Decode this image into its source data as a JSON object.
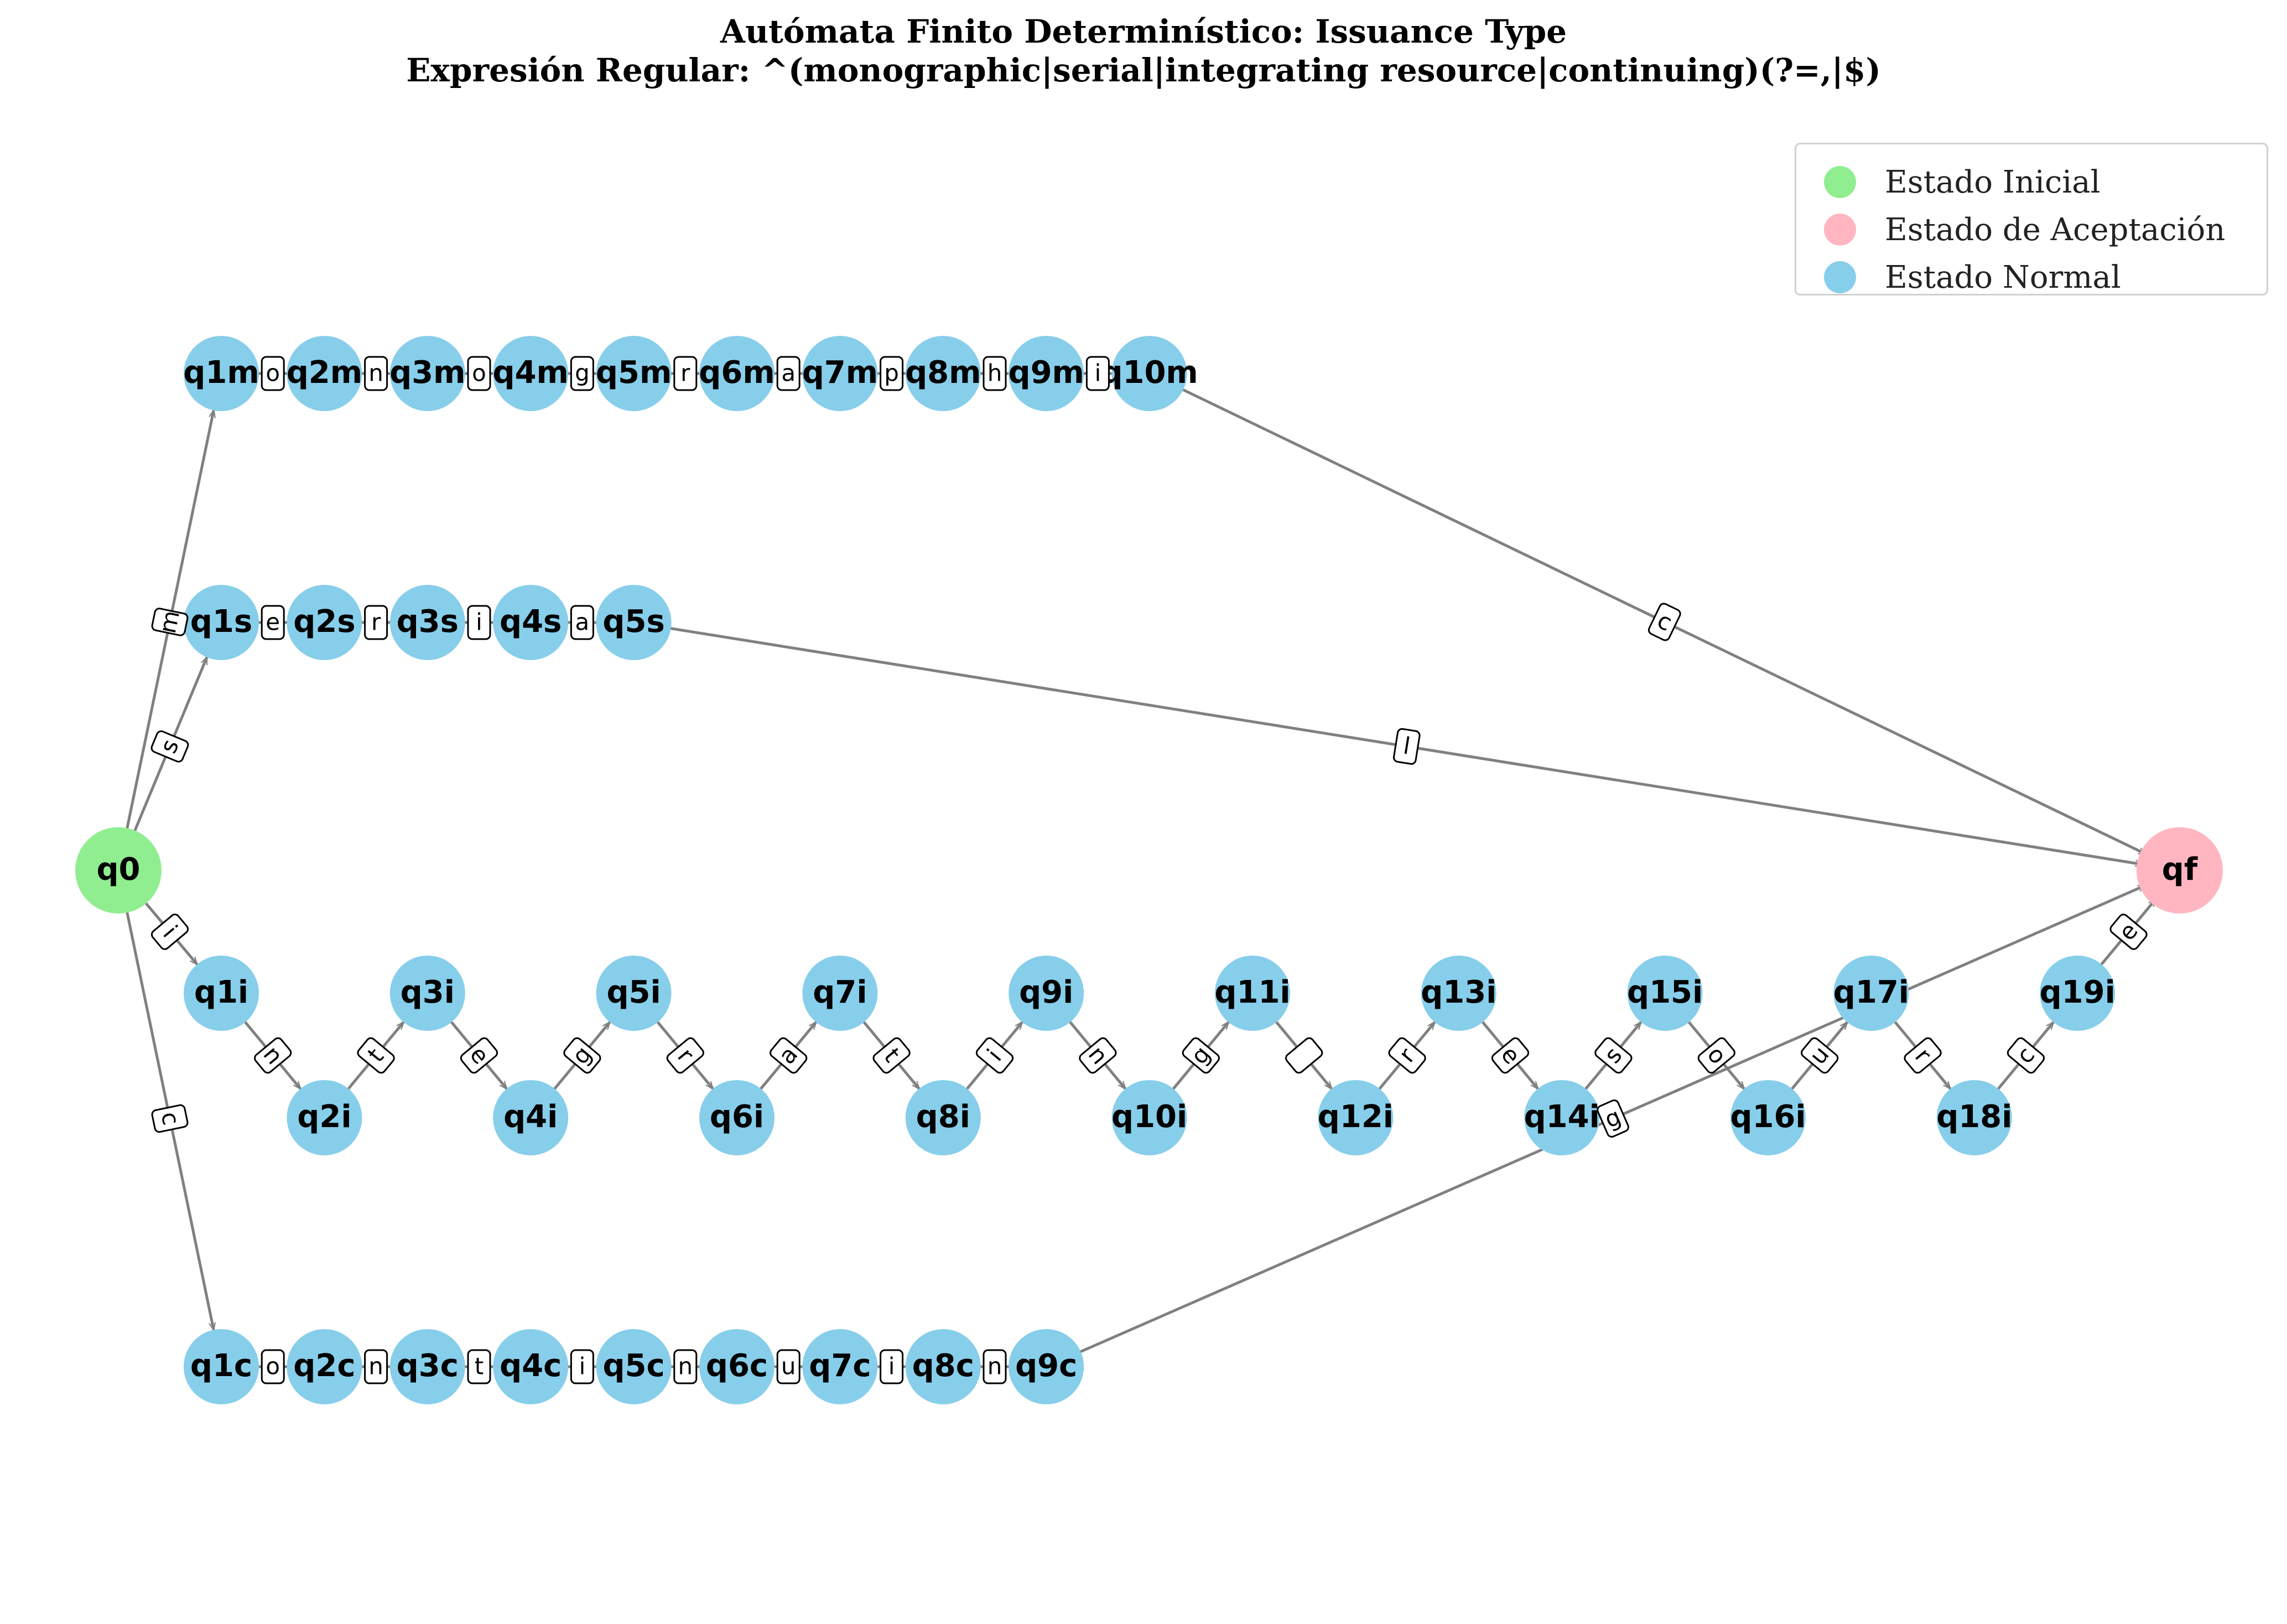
{
  "title": {
    "line1": "Autómata Finito Determinístico: Issuance Type",
    "line2": "Expresión Regular: ^(monographic|serial|integrating resource|continuing)(?=,|$)"
  },
  "legend": [
    {
      "label": "Estado Inicial",
      "color": "#90EE90"
    },
    {
      "label": "Estado de Aceptación",
      "color": "#FFB6C1"
    },
    {
      "label": "Estado Normal",
      "color": "#87CEEB"
    }
  ],
  "colors": {
    "initial": "#90EE90",
    "accept": "#FFB6C1",
    "normal": "#87CEEB",
    "edge": "#808080"
  },
  "nodes": [
    {
      "id": "q0",
      "type": "initial"
    },
    {
      "id": "qf",
      "type": "accept"
    },
    {
      "id": "q1m",
      "type": "normal"
    },
    {
      "id": "q2m",
      "type": "normal"
    },
    {
      "id": "q3m",
      "type": "normal"
    },
    {
      "id": "q4m",
      "type": "normal"
    },
    {
      "id": "q5m",
      "type": "normal"
    },
    {
      "id": "q6m",
      "type": "normal"
    },
    {
      "id": "q7m",
      "type": "normal"
    },
    {
      "id": "q8m",
      "type": "normal"
    },
    {
      "id": "q9m",
      "type": "normal"
    },
    {
      "id": "q10m",
      "type": "normal"
    },
    {
      "id": "q1s",
      "type": "normal"
    },
    {
      "id": "q2s",
      "type": "normal"
    },
    {
      "id": "q3s",
      "type": "normal"
    },
    {
      "id": "q4s",
      "type": "normal"
    },
    {
      "id": "q5s",
      "type": "normal"
    },
    {
      "id": "q1i",
      "type": "normal"
    },
    {
      "id": "q2i",
      "type": "normal"
    },
    {
      "id": "q3i",
      "type": "normal"
    },
    {
      "id": "q4i",
      "type": "normal"
    },
    {
      "id": "q5i",
      "type": "normal"
    },
    {
      "id": "q6i",
      "type": "normal"
    },
    {
      "id": "q7i",
      "type": "normal"
    },
    {
      "id": "q8i",
      "type": "normal"
    },
    {
      "id": "q9i",
      "type": "normal"
    },
    {
      "id": "q10i",
      "type": "normal"
    },
    {
      "id": "q11i",
      "type": "normal"
    },
    {
      "id": "q12i",
      "type": "normal"
    },
    {
      "id": "q13i",
      "type": "normal"
    },
    {
      "id": "q14i",
      "type": "normal"
    },
    {
      "id": "q15i",
      "type": "normal"
    },
    {
      "id": "q16i",
      "type": "normal"
    },
    {
      "id": "q17i",
      "type": "normal"
    },
    {
      "id": "q18i",
      "type": "normal"
    },
    {
      "id": "q19i",
      "type": "normal"
    },
    {
      "id": "q1c",
      "type": "normal"
    },
    {
      "id": "q2c",
      "type": "normal"
    },
    {
      "id": "q3c",
      "type": "normal"
    },
    {
      "id": "q4c",
      "type": "normal"
    },
    {
      "id": "q5c",
      "type": "normal"
    },
    {
      "id": "q6c",
      "type": "normal"
    },
    {
      "id": "q7c",
      "type": "normal"
    },
    {
      "id": "q8c",
      "type": "normal"
    },
    {
      "id": "q9c",
      "type": "normal"
    }
  ],
  "edges": [
    {
      "from": "q0",
      "to": "q1m",
      "label": "m"
    },
    {
      "from": "q1m",
      "to": "q2m",
      "label": "o"
    },
    {
      "from": "q2m",
      "to": "q3m",
      "label": "n"
    },
    {
      "from": "q3m",
      "to": "q4m",
      "label": "o"
    },
    {
      "from": "q4m",
      "to": "q5m",
      "label": "g"
    },
    {
      "from": "q5m",
      "to": "q6m",
      "label": "r"
    },
    {
      "from": "q6m",
      "to": "q7m",
      "label": "a"
    },
    {
      "from": "q7m",
      "to": "q8m",
      "label": "p"
    },
    {
      "from": "q8m",
      "to": "q9m",
      "label": "h"
    },
    {
      "from": "q9m",
      "to": "q10m",
      "label": "i"
    },
    {
      "from": "q10m",
      "to": "qf",
      "label": "c"
    },
    {
      "from": "q0",
      "to": "q1s",
      "label": "s"
    },
    {
      "from": "q1s",
      "to": "q2s",
      "label": "e"
    },
    {
      "from": "q2s",
      "to": "q3s",
      "label": "r"
    },
    {
      "from": "q3s",
      "to": "q4s",
      "label": "i"
    },
    {
      "from": "q4s",
      "to": "q5s",
      "label": "a"
    },
    {
      "from": "q5s",
      "to": "qf",
      "label": "l"
    },
    {
      "from": "q0",
      "to": "q1i",
      "label": "i"
    },
    {
      "from": "q1i",
      "to": "q2i",
      "label": "n"
    },
    {
      "from": "q2i",
      "to": "q3i",
      "label": "t"
    },
    {
      "from": "q3i",
      "to": "q4i",
      "label": "e"
    },
    {
      "from": "q4i",
      "to": "q5i",
      "label": "g"
    },
    {
      "from": "q5i",
      "to": "q6i",
      "label": "r"
    },
    {
      "from": "q6i",
      "to": "q7i",
      "label": "a"
    },
    {
      "from": "q7i",
      "to": "q8i",
      "label": "t"
    },
    {
      "from": "q8i",
      "to": "q9i",
      "label": "i"
    },
    {
      "from": "q9i",
      "to": "q10i",
      "label": "n"
    },
    {
      "from": "q10i",
      "to": "q11i",
      "label": "g"
    },
    {
      "from": "q11i",
      "to": "q12i",
      "label": " "
    },
    {
      "from": "q12i",
      "to": "q13i",
      "label": "r"
    },
    {
      "from": "q13i",
      "to": "q14i",
      "label": "e"
    },
    {
      "from": "q14i",
      "to": "q15i",
      "label": "s"
    },
    {
      "from": "q15i",
      "to": "q16i",
      "label": "o"
    },
    {
      "from": "q16i",
      "to": "q17i",
      "label": "u"
    },
    {
      "from": "q17i",
      "to": "q18i",
      "label": "r"
    },
    {
      "from": "q18i",
      "to": "q19i",
      "label": "c"
    },
    {
      "from": "q19i",
      "to": "qf",
      "label": "e"
    },
    {
      "from": "q0",
      "to": "q1c",
      "label": "c"
    },
    {
      "from": "q1c",
      "to": "q2c",
      "label": "o"
    },
    {
      "from": "q2c",
      "to": "q3c",
      "label": "n"
    },
    {
      "from": "q3c",
      "to": "q4c",
      "label": "t"
    },
    {
      "from": "q4c",
      "to": "q5c",
      "label": "i"
    },
    {
      "from": "q5c",
      "to": "q6c",
      "label": "n"
    },
    {
      "from": "q6c",
      "to": "q7c",
      "label": "u"
    },
    {
      "from": "q7c",
      "to": "q8c",
      "label": "i"
    },
    {
      "from": "q8c",
      "to": "q9c",
      "label": "n"
    },
    {
      "from": "q9c",
      "to": "qf",
      "label": "g"
    }
  ]
}
